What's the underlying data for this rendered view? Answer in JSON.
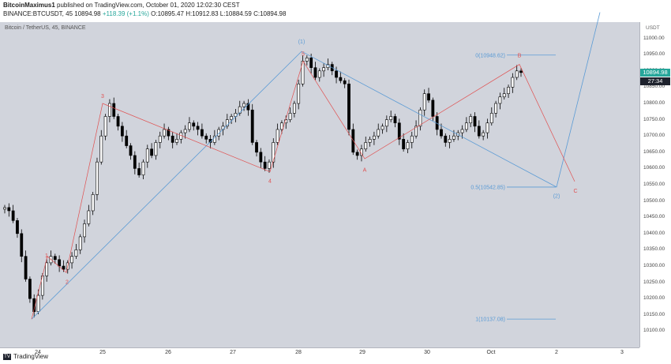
{
  "header": {
    "author": "BitcoinMaximus1",
    "published_text": "published on TradingView.com, October 01, 2020 12:02:30 CEST",
    "symbol": "BINANCE:BTCUSDT, 45",
    "last": "10894.98",
    "change": "+118.39 (+1.1%)",
    "o_label": "O:",
    "o_val": "10895.47",
    "h_label": "H:",
    "h_val": "10912.83",
    "l_label": "L:",
    "l_val": "10884.59",
    "c_label": "C:",
    "c_val": "10894.98"
  },
  "chart_title": "Bitcoin / TetherUS, 45, BINANCE",
  "currency": "USDT",
  "price_tag": "10894.98",
  "countdown": "27:34",
  "footer_brand": "TradingView",
  "colors": {
    "bg": "#d1d4dc",
    "blue": "#5b9bd5",
    "red": "#e05050",
    "candle": "#000000"
  },
  "chart_data": {
    "type": "candlestick",
    "title": "Bitcoin / TetherUS, 45, BINANCE",
    "ylim": [
      10050,
      11050
    ],
    "yticks": [
      "11000.00",
      "10950.00",
      "10900.00",
      "10850.00",
      "10800.00",
      "10750.00",
      "10700.00",
      "10650.00",
      "10600.00",
      "10550.00",
      "10500.00",
      "10450.00",
      "10400.00",
      "10350.00",
      "10300.00",
      "10250.00",
      "10200.00",
      "10150.00",
      "10100.00"
    ],
    "xticks": [
      "24",
      "25",
      "26",
      "27",
      "28",
      "29",
      "30",
      "Oct",
      "2",
      "3"
    ],
    "fib_levels": [
      {
        "label": "0(10948.62)",
        "value": 10948.62
      },
      {
        "label": "0.5(10542.85)",
        "value": 10542.85
      },
      {
        "label": "1(10137.08)",
        "value": 10137.08
      }
    ],
    "wave_labels_red": [
      "1",
      "2",
      "3",
      "4",
      "5",
      "A",
      "B",
      "C"
    ],
    "wave_labels_blue": [
      "(1)",
      "(2)"
    ],
    "price_path_close": [
      10480,
      10470,
      10440,
      10400,
      10330,
      10260,
      10200,
      10160,
      10210,
      10270,
      10310,
      10330,
      10320,
      10300,
      10290,
      10310,
      10330,
      10350,
      10390,
      10430,
      10470,
      10520,
      10620,
      10700,
      10760,
      10800,
      10760,
      10730,
      10700,
      10670,
      10640,
      10600,
      10580,
      10620,
      10660,
      10640,
      10680,
      10700,
      10720,
      10700,
      10680,
      10690,
      10710,
      10720,
      10740,
      10730,
      10720,
      10700,
      10690,
      10680,
      10700,
      10720,
      10730,
      10750,
      10760,
      10770,
      10790,
      10800,
      10780,
      10680,
      10650,
      10620,
      10600,
      10620,
      10680,
      10720,
      10740,
      10750,
      10770,
      10800,
      10860,
      10930,
      10940,
      10910,
      10880,
      10900,
      10910,
      10920,
      10900,
      10880,
      10870,
      10860,
      10720,
      10650,
      10640,
      10660,
      10680,
      10690,
      10700,
      10720,
      10730,
      10750,
      10760,
      10740,
      10690,
      10660,
      10680,
      10700,
      10730,
      10780,
      10830,
      10810,
      10760,
      10720,
      10700,
      10680,
      10690,
      10700,
      10710,
      10720,
      10740,
      10760,
      10730,
      10700,
      10710,
      10740,
      10770,
      10800,
      10820,
      10830,
      10850,
      10880,
      10900,
      10894.98
    ]
  }
}
